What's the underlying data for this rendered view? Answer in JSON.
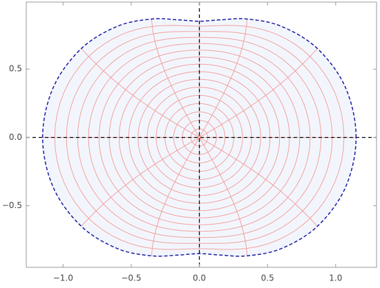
{
  "chart_data": {
    "type": "region",
    "xlim": [
      -1.27,
      1.3
    ],
    "ylim": [
      -0.95,
      0.99
    ],
    "xticks": [
      {
        "value": -1,
        "label": "−1.0"
      },
      {
        "value": -0.5,
        "label": "−0.5"
      },
      {
        "value": 0,
        "label": "0.0"
      },
      {
        "value": 0.5,
        "label": "0.5"
      },
      {
        "value": 1,
        "label": "1.0"
      }
    ],
    "yticks": [
      {
        "value": -0.5,
        "label": "−0.5"
      },
      {
        "value": 0,
        "label": "0.0"
      },
      {
        "value": 0.5,
        "label": "0.5"
      }
    ],
    "boundary_color": "#1a1aa0",
    "fill_color": "#f2f6fc",
    "mesh_color": "#f2a0a0",
    "series": [
      {
        "x": [
          1.15,
          1.072,
          0.866,
          0.601,
          0.35,
          0.153,
          0,
          -0.153,
          -0.35,
          -0.601,
          -0.866,
          -1.072,
          -1.15,
          -1.072,
          -0.866,
          -0.601,
          -0.35,
          -0.153,
          0,
          0.153,
          0.35,
          0.601,
          0.866,
          1.072
        ],
        "y": [
          0,
          0.365,
          0.65,
          0.813,
          0.866,
          0.86,
          0.85,
          0.86,
          0.866,
          0.813,
          0.65,
          0.365,
          0,
          -0.365,
          -0.65,
          -0.813,
          -0.866,
          -0.86,
          -0.85,
          -0.86,
          -0.866,
          -0.813,
          -0.65,
          -0.365
        ]
      }
    ]
  }
}
